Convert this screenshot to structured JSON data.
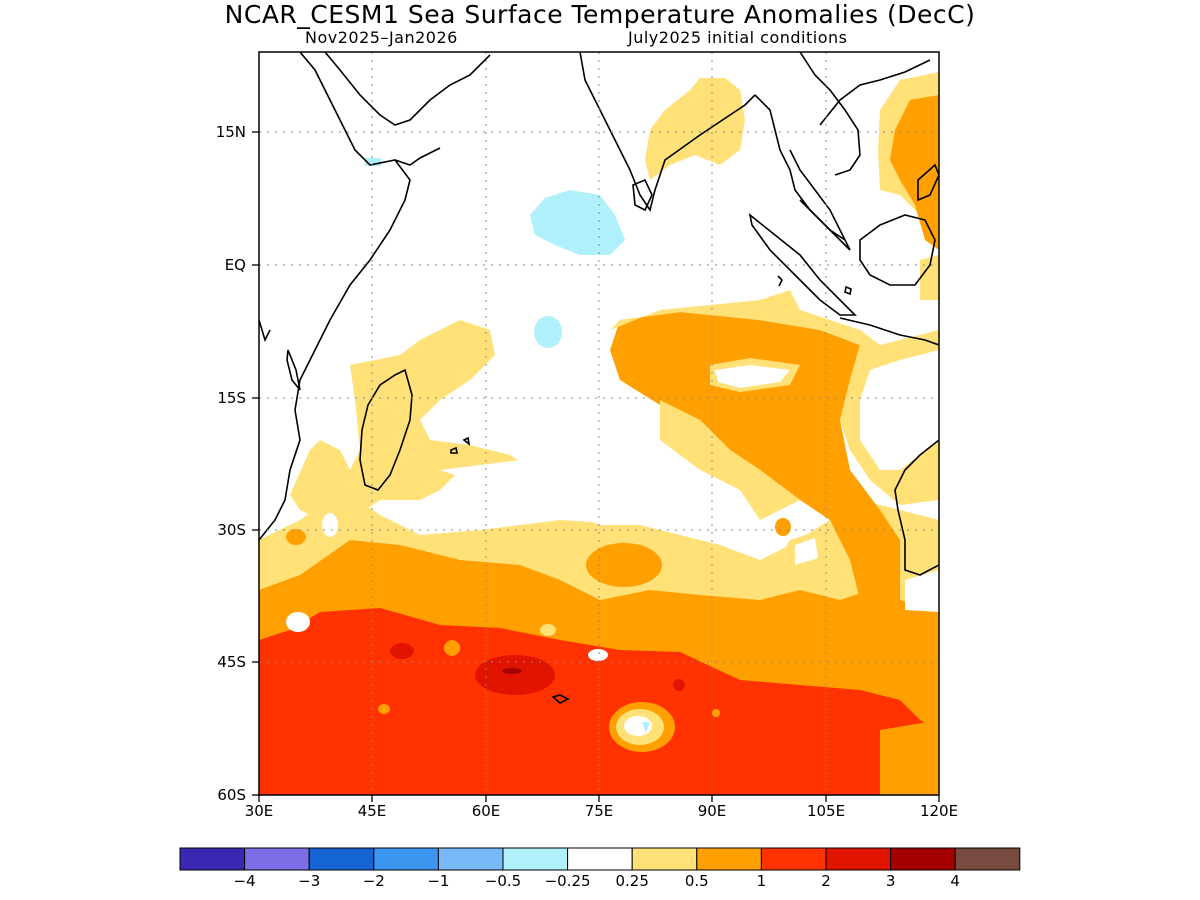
{
  "title": "NCAR_CESM1 Sea Surface Temperature Anomalies (DecC)",
  "subtitle_left": "Nov2025–Jan2026",
  "subtitle_right": "July2025 initial conditions",
  "y_ticks": [
    "15N",
    "EQ",
    "15S",
    "30S",
    "45S",
    "60S"
  ],
  "x_ticks": [
    "30E",
    "45E",
    "60E",
    "75E",
    "90E",
    "105E",
    "120E"
  ],
  "colorbar": {
    "colors": [
      "#3a28b4",
      "#7b6ee6",
      "#1464d2",
      "#3c96f0",
      "#78b9fa",
      "#aff0fa",
      "#ffffff",
      "#ffe178",
      "#ffa000",
      "#ff3200",
      "#e11400",
      "#a50000",
      "#784b41"
    ],
    "labels": [
      "−4",
      "−3",
      "−2",
      "−1",
      "−0.5",
      "−0.25",
      "0.25",
      "0.5",
      "1",
      "2",
      "3",
      "4"
    ]
  }
}
